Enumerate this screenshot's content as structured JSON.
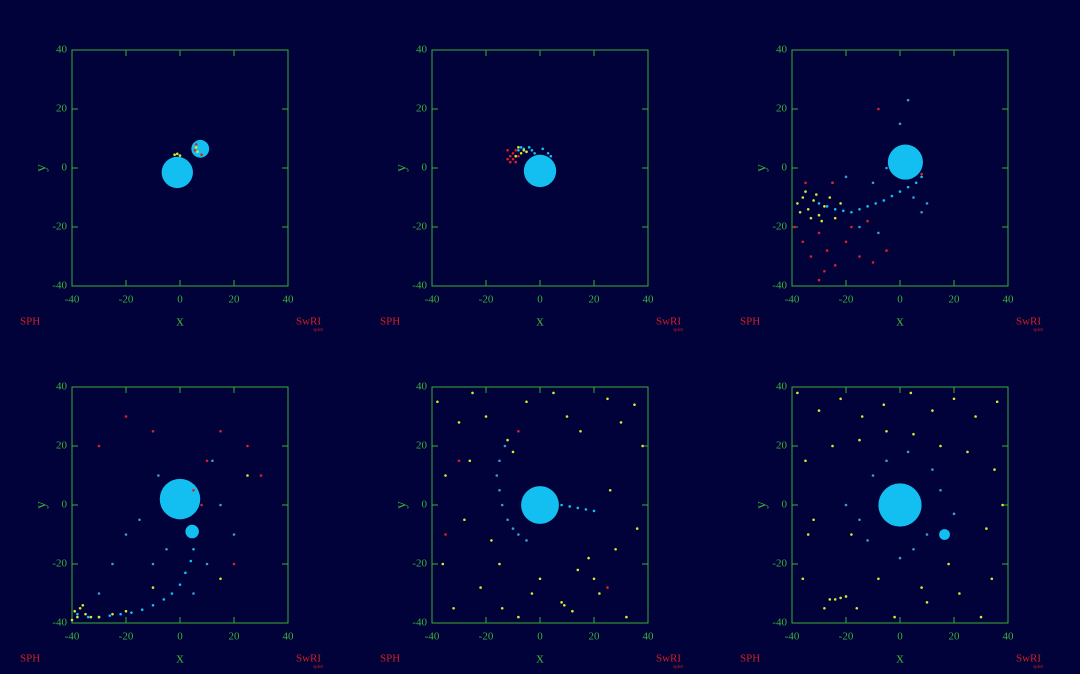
{
  "chart_data": [
    {
      "type": "scatter",
      "xlabel": "x",
      "ylabel": "y",
      "left_note": "SPH",
      "right_note": "SwRI",
      "credit": "splot",
      "xlim": [
        -40,
        40
      ],
      "ylim": [
        -40,
        40
      ],
      "xticks": [
        -40,
        -20,
        0,
        20,
        40
      ],
      "yticks": [
        -40,
        -20,
        0,
        20,
        40
      ],
      "series": [
        {
          "color": "#12bff0",
          "x": [
            -1,
            7.5
          ],
          "y": [
            -1.5,
            6.5
          ],
          "sizes": [
            5.8,
            3.3
          ]
        },
        {
          "color": "#d8e830",
          "x": [
            -2,
            -1,
            0,
            6,
            6.5
          ],
          "y": [
            4.5,
            4.8,
            4.2,
            7,
            5.5
          ]
        },
        {
          "color": "#e02020",
          "x": [
            5.5,
            6,
            8
          ],
          "y": [
            6,
            8,
            4.5
          ]
        }
      ]
    },
    {
      "type": "scatter",
      "xlabel": "x",
      "ylabel": "y",
      "left_note": "SPH",
      "right_note": "SwRI",
      "credit": "splot",
      "xlim": [
        -40,
        40
      ],
      "ylim": [
        -40,
        40
      ],
      "xticks": [
        -40,
        -20,
        0,
        20,
        40
      ],
      "yticks": [
        -40,
        -20,
        0,
        20,
        40
      ],
      "series": [
        {
          "color": "#12bff0",
          "x": [
            0
          ],
          "y": [
            -1
          ],
          "sizes": [
            6
          ]
        },
        {
          "color": "#12bff0",
          "x": [
            -8,
            -6,
            -4,
            -3,
            -2,
            -5,
            -7,
            1,
            3,
            4
          ],
          "y": [
            6,
            6.5,
            7,
            6,
            5,
            5.5,
            7,
            6.5,
            5,
            4
          ]
        },
        {
          "color": "#e02020",
          "x": [
            -12,
            -11,
            -10,
            -10,
            -9,
            -11,
            -8,
            -12,
            -9
          ],
          "y": [
            6,
            4,
            3,
            5,
            2,
            2,
            4,
            3,
            6
          ]
        },
        {
          "color": "#d8e830",
          "x": [
            -9,
            -7,
            -6,
            -8,
            -5
          ],
          "y": [
            4,
            5,
            6,
            7,
            5.5
          ]
        }
      ]
    },
    {
      "type": "scatter",
      "xlabel": "x",
      "ylabel": "y",
      "left_note": "SPH",
      "right_note": "SwRI",
      "credit": "splot",
      "xlim": [
        -40,
        40
      ],
      "ylim": [
        -40,
        40
      ],
      "xticks": [
        -40,
        -20,
        0,
        20,
        40
      ],
      "yticks": [
        -40,
        -20,
        0,
        20,
        40
      ],
      "series": [
        {
          "color": "#12bff0",
          "x": [
            2
          ],
          "y": [
            2
          ],
          "sizes": [
            6.5
          ]
        },
        {
          "color": "#12bff0",
          "x": [
            8,
            6,
            3,
            0,
            -3,
            -6,
            -9,
            -12,
            -15,
            -18,
            -21,
            -24,
            -27,
            -30
          ],
          "y": [
            -3,
            -5,
            -6.5,
            -8,
            -9.5,
            -11,
            -12,
            -13,
            -14,
            -15,
            -14.5,
            -14,
            -13,
            -12
          ]
        },
        {
          "color": "#3a9ad8",
          "x": [
            -10,
            -5,
            5,
            10,
            -15,
            -20,
            0,
            -25,
            8,
            -8,
            3
          ],
          "y": [
            -5,
            0,
            -10,
            -12,
            -20,
            -3,
            15,
            -5,
            -15,
            -22,
            23
          ]
        },
        {
          "color": "#d8e830",
          "x": [
            -38,
            -36,
            -34,
            -32,
            -30,
            -28,
            -35,
            -33,
            -31,
            -29,
            -37,
            -26,
            -24,
            -22
          ],
          "y": [
            -12,
            -10,
            -14,
            -11,
            -16,
            -13,
            -8,
            -17,
            -9,
            -18,
            -15,
            -10,
            -17,
            -12
          ]
        },
        {
          "color": "#e02020",
          "x": [
            -39,
            -36,
            -33,
            -30,
            -27,
            -24,
            -20,
            -15,
            -10,
            -35,
            -25,
            -18,
            -8,
            -30,
            -5,
            8,
            -12,
            -28
          ],
          "y": [
            -20,
            -25,
            -30,
            -22,
            -28,
            -33,
            -25,
            -30,
            -32,
            -5,
            -5,
            -20,
            20,
            -38,
            -28,
            -2,
            -18,
            -35
          ]
        }
      ]
    },
    {
      "type": "scatter",
      "xlabel": "x",
      "ylabel": "y",
      "left_note": "SPH",
      "right_note": "SwRI",
      "credit": "splot",
      "xlim": [
        -40,
        40
      ],
      "ylim": [
        -40,
        40
      ],
      "xticks": [
        -40,
        -20,
        0,
        20,
        40
      ],
      "yticks": [
        -40,
        -20,
        0,
        20,
        40
      ],
      "series": [
        {
          "color": "#12bff0",
          "x": [
            0,
            4.5
          ],
          "y": [
            2,
            -9
          ],
          "sizes": [
            7.5,
            2.5
          ]
        },
        {
          "color": "#12bff0",
          "x": [
            5,
            4,
            2,
            0,
            -3,
            -6,
            -10,
            -14,
            -18,
            -22,
            -26,
            -30,
            -34,
            -38
          ],
          "y": [
            -15,
            -19,
            -23,
            -27,
            -30,
            -32,
            -34,
            -35.5,
            -36.5,
            -37,
            -37.5,
            -38,
            -38,
            -37
          ]
        },
        {
          "color": "#d8e830",
          "x": [
            -39,
            -38,
            -37,
            -35,
            -33,
            -40,
            -36,
            -30,
            -25,
            -20,
            15,
            -10,
            25
          ],
          "y": [
            -36,
            -38,
            -35,
            -37,
            -38,
            -39,
            -34,
            -38,
            -37,
            -36,
            -25,
            -28,
            10
          ]
        },
        {
          "color": "#3a9ad8",
          "x": [
            -20,
            -10,
            -5,
            10,
            15,
            -15,
            5,
            -25,
            20,
            -8,
            12,
            -30
          ],
          "y": [
            -10,
            -20,
            -15,
            -20,
            0,
            -5,
            -30,
            -20,
            -10,
            10,
            15,
            -30
          ]
        },
        {
          "color": "#e02020",
          "x": [
            -30,
            -10,
            10,
            15,
            25,
            30,
            8,
            -20,
            20,
            5
          ],
          "y": [
            20,
            25,
            15,
            25,
            20,
            10,
            0,
            30,
            -20,
            5
          ]
        }
      ]
    },
    {
      "type": "scatter",
      "xlabel": "x",
      "ylabel": "y",
      "left_note": "SPH",
      "right_note": "SwRI",
      "credit": "splot",
      "xlim": [
        -40,
        40
      ],
      "ylim": [
        -40,
        40
      ],
      "xticks": [
        -40,
        -20,
        0,
        20,
        40
      ],
      "yticks": [
        -40,
        -20,
        0,
        20,
        40
      ],
      "series": [
        {
          "color": "#12bff0",
          "x": [
            0
          ],
          "y": [
            0
          ],
          "sizes": [
            7
          ]
        },
        {
          "color": "#12bff0",
          "x": [
            5,
            8,
            11,
            14,
            17,
            20
          ],
          "y": [
            1,
            0,
            -0.5,
            -1,
            -1.5,
            -2
          ]
        },
        {
          "color": "#3a9ad8",
          "x": [
            -13,
            -15,
            -16,
            -15,
            -14,
            -12,
            -10,
            -8,
            -5
          ],
          "y": [
            20,
            15,
            10,
            5,
            0,
            -5,
            -8,
            -10,
            -12
          ]
        },
        {
          "color": "#d8e830",
          "x": [
            -38,
            -30,
            -25,
            -20,
            -12,
            -10,
            -5,
            5,
            10,
            15,
            25,
            30,
            35,
            38,
            -35,
            -28,
            -15,
            -3,
            8,
            20,
            28,
            36,
            -32,
            -22,
            -8,
            12,
            22,
            32,
            -36,
            -18,
            0,
            18,
            9,
            -26,
            26,
            -14,
            14
          ],
          "y": [
            35,
            28,
            38,
            30,
            22,
            18,
            35,
            38,
            30,
            25,
            36,
            28,
            34,
            20,
            10,
            -5,
            -20,
            -30,
            -33,
            -25,
            -15,
            -8,
            -35,
            -28,
            -38,
            -36,
            -30,
            -38,
            -20,
            -12,
            -25,
            -18,
            -34,
            15,
            5,
            -35,
            -22
          ]
        },
        {
          "color": "#e02020",
          "x": [
            -30,
            -35,
            -8,
            25
          ],
          "y": [
            15,
            -10,
            25,
            -28
          ]
        }
      ]
    },
    {
      "type": "scatter",
      "xlabel": "x",
      "ylabel": "y",
      "left_note": "SPH",
      "right_note": "SwRI",
      "credit": "splot",
      "xlim": [
        -40,
        40
      ],
      "ylim": [
        -40,
        40
      ],
      "xticks": [
        -40,
        -20,
        0,
        20,
        40
      ],
      "yticks": [
        -40,
        -20,
        0,
        20,
        40
      ],
      "series": [
        {
          "color": "#12bff0",
          "x": [
            0,
            16.5
          ],
          "y": [
            0,
            -10
          ],
          "sizes": [
            8,
            2
          ]
        },
        {
          "color": "#3a9ad8",
          "x": [
            -10,
            10,
            -15,
            15,
            -5,
            5,
            -12,
            12,
            0,
            -20,
            20,
            3
          ],
          "y": [
            10,
            -10,
            -5,
            5,
            15,
            -15,
            -12,
            12,
            -18,
            0,
            -3,
            18
          ]
        },
        {
          "color": "#d8e830",
          "x": [
            -38,
            -30,
            -22,
            -14,
            -6,
            4,
            12,
            20,
            28,
            36,
            -35,
            -25,
            -15,
            -5,
            5,
            15,
            25,
            35,
            -32,
            -18,
            -8,
            8,
            18,
            32,
            -36,
            -26,
            -16,
            -2,
            10,
            22,
            34,
            -20,
            -22,
            -24,
            -28,
            30,
            -34,
            38
          ],
          "y": [
            38,
            32,
            36,
            30,
            34,
            38,
            32,
            36,
            30,
            35,
            15,
            20,
            22,
            25,
            24,
            20,
            18,
            12,
            -5,
            -10,
            -25,
            -28,
            -20,
            -8,
            -25,
            -32,
            -35,
            -38,
            -33,
            -30,
            -25,
            -31,
            -31.5,
            -32,
            -35,
            -38,
            -10,
            0
          ]
        }
      ]
    }
  ]
}
